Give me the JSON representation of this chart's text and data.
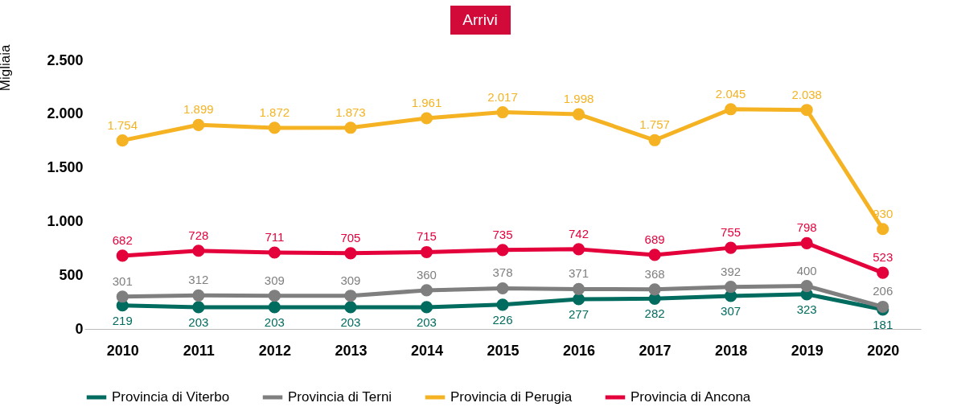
{
  "chart_data": {
    "type": "line",
    "title": "Arrivi",
    "ylabel": "Migliaia",
    "categories": [
      "2010",
      "2011",
      "2012",
      "2013",
      "2014",
      "2015",
      "2016",
      "2017",
      "2018",
      "2019",
      "2020"
    ],
    "ylim": [
      0,
      2500
    ],
    "yticks": [
      0,
      500,
      {
        "value": 1000,
        "label": "1.000"
      },
      {
        "value": 1500,
        "label": "1.500"
      },
      {
        "value": 2000,
        "label": "2.000"
      },
      {
        "value": 2500,
        "label": "2.500"
      }
    ],
    "grid": false,
    "legend": "bottom",
    "marker": "circle",
    "line_style": "solid",
    "series": [
      {
        "name": "Provincia di Viterbo",
        "color": "#006b5f",
        "values": [
          219,
          203,
          203,
          203,
          203,
          226,
          277,
          282,
          307,
          323,
          181
        ],
        "value_labels": [
          "219",
          "203",
          "203",
          "203",
          "203",
          "226",
          "277",
          "282",
          "307",
          "323",
          "181"
        ]
      },
      {
        "name": "Provincia di Terni",
        "color": "#7f7f7f",
        "values": [
          301,
          312,
          309,
          309,
          360,
          378,
          371,
          368,
          392,
          400,
          206
        ],
        "value_labels": [
          "301",
          "312",
          "309",
          "309",
          "360",
          "378",
          "371",
          "368",
          "392",
          "400",
          "206"
        ]
      },
      {
        "name": "Provincia di Perugia",
        "color": "#f5b324",
        "values": [
          1754,
          1899,
          1872,
          1873,
          1961,
          2017,
          1998,
          1757,
          2045,
          2038,
          930
        ],
        "value_labels": [
          "1.754",
          "1.899",
          "1.872",
          "1.873",
          "1.961",
          "2.017",
          "1.998",
          "1.757",
          "2.045",
          "2.038",
          "930"
        ]
      },
      {
        "name": "Provincia di Ancona",
        "color": "#e4003a",
        "values": [
          682,
          728,
          711,
          705,
          715,
          735,
          742,
          689,
          755,
          798,
          523
        ],
        "value_labels": [
          "682",
          "728",
          "711",
          "705",
          "715",
          "735",
          "742",
          "689",
          "755",
          "798",
          "523"
        ]
      }
    ]
  }
}
